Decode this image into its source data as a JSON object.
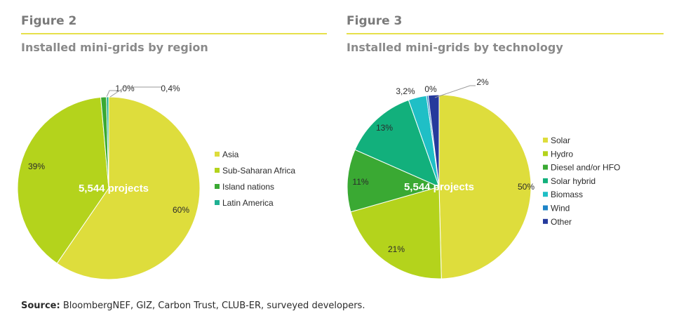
{
  "source": {
    "label": "Source:",
    "text": " BloombergNEF, GIZ, Carbon Trust, CLUB-ER, surveyed developers."
  },
  "figure2": {
    "label": "Figure 2",
    "title": "Installed mini-grids by region"
  },
  "figure3": {
    "label": "Figure 3",
    "title": "Installed mini-grids by technology"
  },
  "colors": {
    "asia": "#dedd3c",
    "ssa": "#b4d31c",
    "island": "#3aa933",
    "latam": "#1fb092",
    "solar": "#dedd3c",
    "hydro": "#b4d31c",
    "diesel": "#3aa933",
    "solar_hybrid": "#12b07c",
    "biomass": "#1fbfc6",
    "wind": "#1e84c7",
    "other": "#253a9c"
  },
  "chart_data": [
    {
      "type": "pie",
      "title": "Installed mini-grids by region",
      "center_label": "5,544 projects",
      "legend_position": "right",
      "slices": [
        {
          "label": "Asia",
          "value": 59.6,
          "display": "60%",
          "color": "#dedd3c"
        },
        {
          "label": "Sub-Saharan Africa",
          "value": 39.0,
          "display": "39%",
          "color": "#b4d31c"
        },
        {
          "label": "Island nations",
          "value": 1.0,
          "display": "1,0%",
          "color": "#3aa933"
        },
        {
          "label": "Latin America",
          "value": 0.4,
          "display": "0,4%",
          "color": "#1fb092"
        }
      ]
    },
    {
      "type": "pie",
      "title": "Installed mini-grids by technology",
      "center_label": "5,544 projects",
      "legend_position": "right",
      "slices": [
        {
          "label": "Solar",
          "value": 49.6,
          "display": "50%",
          "color": "#dedd3c"
        },
        {
          "label": "Hydro",
          "value": 21.0,
          "display": "21%",
          "color": "#b4d31c"
        },
        {
          "label": "Diesel and/or HFO",
          "value": 11.0,
          "display": "11%",
          "color": "#3aa933"
        },
        {
          "label": "Solar hybrid",
          "value": 13.0,
          "display": "13%",
          "color": "#12b07c"
        },
        {
          "label": "Biomass",
          "value": 3.2,
          "display": "3,2%",
          "color": "#1fbfc6"
        },
        {
          "label": "Wind",
          "value": 0.3,
          "display": "0%",
          "color": "#1e84c7"
        },
        {
          "label": "Other",
          "value": 1.9,
          "display": "2%",
          "color": "#253a9c"
        }
      ]
    }
  ]
}
